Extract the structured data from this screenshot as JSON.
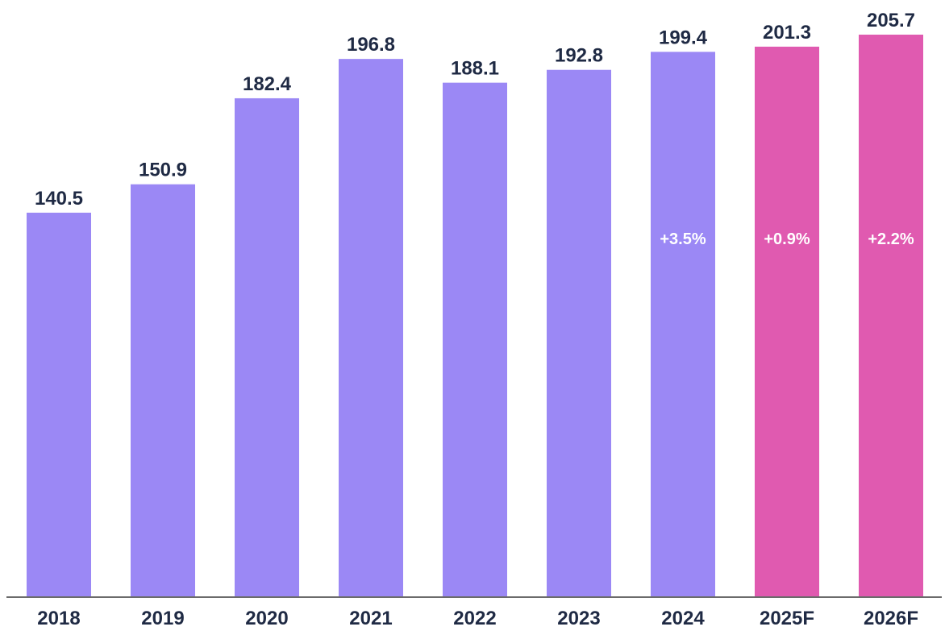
{
  "chart_data": {
    "type": "bar",
    "categories": [
      "2018",
      "2019",
      "2020",
      "2021",
      "2022",
      "2023",
      "2024",
      "2025F",
      "2026F"
    ],
    "values": [
      140.5,
      150.9,
      182.4,
      196.8,
      188.1,
      192.8,
      199.4,
      201.3,
      205.7
    ],
    "value_labels": [
      "140.5",
      "150.9",
      "182.4",
      "196.8",
      "188.1",
      "192.8",
      "199.4",
      "201.3",
      "205.7"
    ],
    "forecast": [
      false,
      false,
      false,
      false,
      false,
      false,
      false,
      true,
      true
    ],
    "growth_labels": [
      "",
      "",
      "",
      "",
      "",
      "",
      "+3.5%",
      "+0.9%",
      "+2.2%"
    ],
    "colors": {
      "actual": "#9b88f5",
      "forecast": "#e05ab0",
      "axis": "#6b6b6b",
      "text": "#1f2a44",
      "growth_text": "#ffffff"
    },
    "ylim": [
      0,
      205.7
    ],
    "title": "",
    "xlabel": "",
    "ylabel": "",
    "grid": false,
    "legend": "none"
  }
}
